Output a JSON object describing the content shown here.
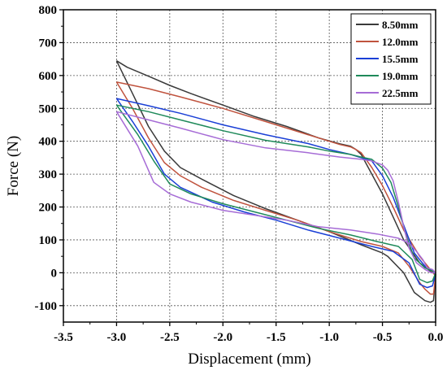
{
  "chart_data": {
    "type": "line",
    "xlabel": "Displacement (mm)",
    "ylabel": "Force (N)",
    "xlim": [
      -3.5,
      0.0
    ],
    "ylim": [
      -150,
      800
    ],
    "xticks": [
      -3.5,
      -3.0,
      -2.5,
      -2.0,
      -1.5,
      -1.0,
      -0.5,
      0.0
    ],
    "xtick_labels": [
      "-3.5",
      "-3.0",
      "-2.5",
      "-2.0",
      "-1.5",
      "-1.0",
      "-0.5",
      "0.0"
    ],
    "yticks": [
      -100,
      0,
      100,
      200,
      300,
      400,
      500,
      600,
      700,
      800
    ],
    "ytick_labels": [
      "-100",
      "0",
      "100",
      "200",
      "300",
      "400",
      "500",
      "600",
      "700",
      "800"
    ],
    "grid": true,
    "legend_position": "top-right",
    "series": [
      {
        "name": "8.50mm",
        "color": "#3a3a3a",
        "x": [
          -3.0,
          -2.9,
          -2.7,
          -2.5,
          -2.3,
          -2.0,
          -1.7,
          -1.4,
          -1.1,
          -0.9,
          -0.8,
          -0.75,
          -0.7,
          -0.6,
          -0.5,
          -0.4,
          -0.3,
          -0.15,
          -0.05,
          0.0,
          -0.02,
          -0.05,
          -0.1,
          -0.2,
          -0.3,
          -0.45,
          -0.5,
          -0.7,
          -1.0,
          -1.3,
          -1.6,
          -1.9,
          -2.2,
          -2.4,
          -2.55,
          -2.7,
          -2.85,
          -3.0,
          -3.0
        ],
        "y": [
          645,
          625,
          598,
          570,
          545,
          510,
          475,
          445,
          410,
          392,
          385,
          375,
          360,
          300,
          240,
          170,
          100,
          30,
          5,
          -5,
          -85,
          -90,
          -85,
          -60,
          0,
          50,
          60,
          85,
          125,
          160,
          195,
          235,
          285,
          320,
          370,
          445,
          545,
          645,
          645
        ]
      },
      {
        "name": "12.0mm",
        "color": "#c0533e",
        "x": [
          -3.0,
          -2.7,
          -2.4,
          -2.0,
          -1.6,
          -1.2,
          -0.9,
          -0.8,
          -0.75,
          -0.7,
          -0.6,
          -0.5,
          -0.4,
          -0.3,
          -0.15,
          -0.05,
          0.0,
          -0.02,
          -0.05,
          -0.1,
          -0.15,
          -0.25,
          -0.35,
          -0.5,
          -0.7,
          -1.0,
          -1.3,
          -1.6,
          -1.9,
          -2.2,
          -2.4,
          -2.55,
          -2.7,
          -2.85,
          -3.0,
          -3.0
        ],
        "y": [
          580,
          560,
          535,
          500,
          460,
          420,
          390,
          383,
          375,
          365,
          320,
          265,
          200,
          130,
          50,
          10,
          -10,
          -65,
          -65,
          -50,
          -30,
          20,
          60,
          80,
          95,
          125,
          160,
          190,
          220,
          260,
          295,
          335,
          410,
          500,
          580,
          580
        ]
      },
      {
        "name": "15.5mm",
        "color": "#1a3fd6",
        "x": [
          -3.0,
          -2.7,
          -2.4,
          -2.0,
          -1.6,
          -1.2,
          -1.0,
          -0.8,
          -0.7,
          -0.6,
          -0.5,
          -0.4,
          -0.3,
          -0.2,
          -0.1,
          -0.03,
          0.0,
          -0.03,
          -0.08,
          -0.15,
          -0.25,
          -0.4,
          -0.6,
          -0.9,
          -1.2,
          -1.5,
          -1.8,
          -2.1,
          -2.4,
          -2.55,
          -2.7,
          -2.85,
          -3.0,
          -3.0
        ],
        "y": [
          530,
          508,
          485,
          450,
          420,
          393,
          375,
          360,
          350,
          340,
          295,
          230,
          145,
          60,
          20,
          5,
          -5,
          -40,
          -45,
          -35,
          30,
          65,
          80,
          105,
          130,
          160,
          185,
          215,
          260,
          300,
          385,
          460,
          530,
          530
        ]
      },
      {
        "name": "19.0mm",
        "color": "#1f8a5a",
        "x": [
          -3.0,
          -2.7,
          -2.4,
          -2.0,
          -1.6,
          -1.2,
          -1.0,
          -0.8,
          -0.7,
          -0.6,
          -0.5,
          -0.42,
          -0.35,
          -0.28,
          -0.2,
          -0.1,
          -0.03,
          0.0,
          -0.03,
          -0.08,
          -0.15,
          -0.22,
          -0.35,
          -0.55,
          -0.8,
          -1.1,
          -1.4,
          -1.7,
          -2.0,
          -2.3,
          -2.5,
          -2.65,
          -2.8,
          -3.0,
          -3.0
        ],
        "y": [
          510,
          490,
          465,
          432,
          403,
          383,
          370,
          360,
          352,
          345,
          318,
          275,
          200,
          115,
          45,
          15,
          5,
          0,
          -25,
          -30,
          -20,
          40,
          80,
          95,
          115,
          135,
          160,
          185,
          210,
          240,
          270,
          340,
          420,
          510,
          510
        ]
      },
      {
        "name": "22.5mm",
        "color": "#a66cd6",
        "x": [
          -3.0,
          -2.7,
          -2.4,
          -2.0,
          -1.6,
          -1.2,
          -0.9,
          -0.7,
          -0.6,
          -0.5,
          -0.45,
          -0.4,
          -0.35,
          -0.3,
          -0.25,
          -0.18,
          -0.1,
          -0.04,
          0.0,
          -0.03,
          -0.08,
          -0.12,
          -0.18,
          -0.25,
          -0.35,
          -0.55,
          -0.8,
          -1.1,
          -1.4,
          -1.7,
          -2.0,
          -2.3,
          -2.5,
          -2.65,
          -2.8,
          -3.0,
          -3.0
        ],
        "y": [
          490,
          465,
          440,
          405,
          380,
          365,
          352,
          345,
          340,
          328,
          312,
          280,
          215,
          140,
          75,
          30,
          10,
          0,
          0,
          10,
          15,
          40,
          65,
          90,
          105,
          118,
          130,
          140,
          160,
          175,
          190,
          215,
          240,
          275,
          385,
          490,
          490
        ]
      }
    ]
  }
}
